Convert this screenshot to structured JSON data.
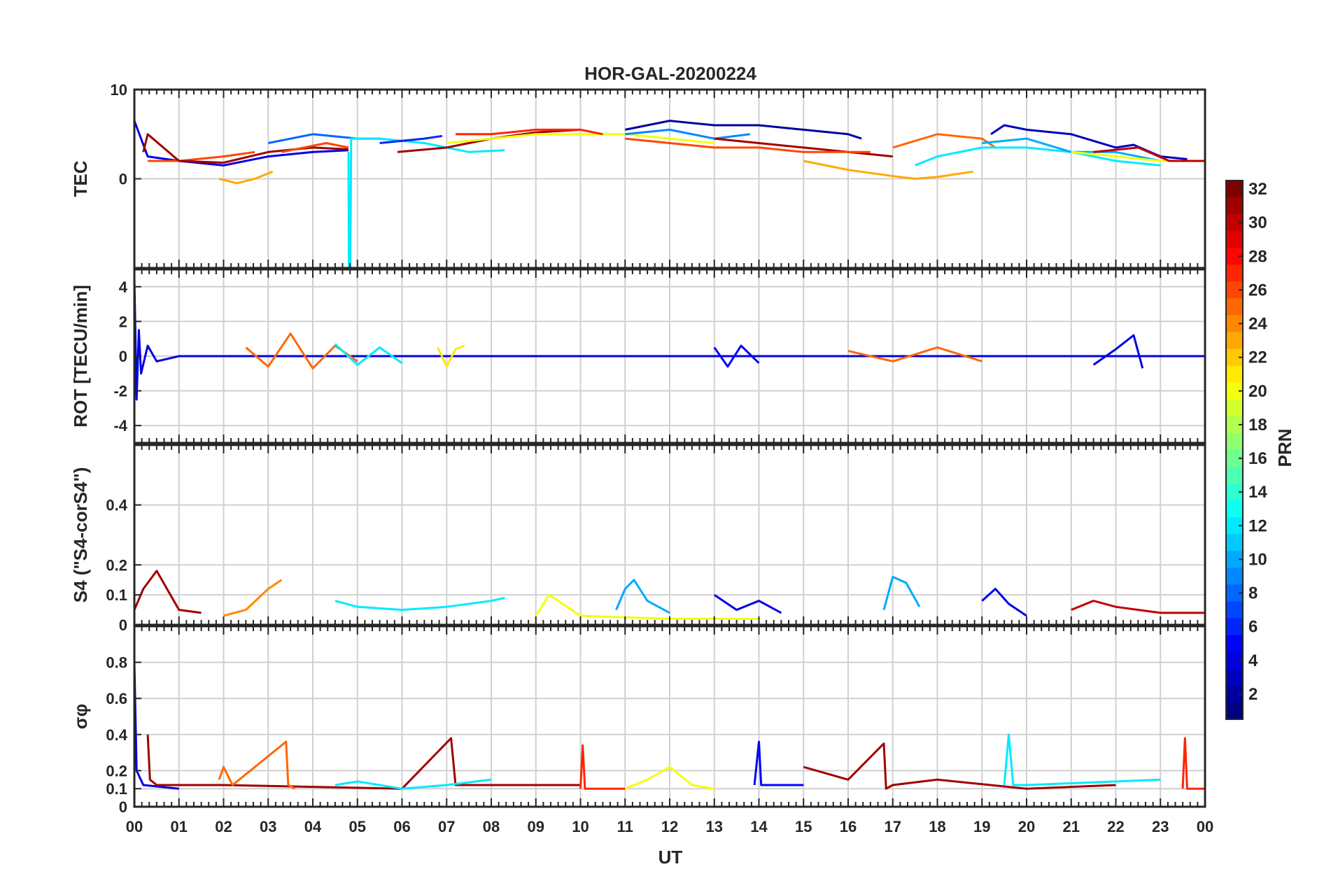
{
  "title": "HOR-GAL-20200224",
  "colors": {
    "axis": "#262626",
    "grid": "#d0d0d0",
    "background": "#ffffff"
  },
  "colorbar": {
    "label": "PRN",
    "min": 1,
    "max": 32,
    "ticks": [
      2,
      4,
      6,
      8,
      10,
      12,
      14,
      16,
      18,
      20,
      22,
      24,
      26,
      28,
      30,
      32
    ],
    "colormap": "jet"
  },
  "chart_data": [
    {
      "type": "line",
      "panel": "TEC",
      "ylabel": "TEC",
      "xlim": [
        0,
        24
      ],
      "ylim": [
        -10,
        10
      ],
      "yticks": [
        10,
        0
      ],
      "grid": true,
      "series": [
        {
          "prn": 4,
          "x": [
            0,
            0.3,
            1,
            2,
            3,
            4,
            4.8
          ],
          "y": [
            6.5,
            2.5,
            2,
            1.5,
            2.5,
            3,
            3.2
          ]
        },
        {
          "prn": 26,
          "x": [
            0.3,
            1,
            2,
            2.7
          ],
          "y": [
            2,
            2,
            2.5,
            3
          ]
        },
        {
          "prn": 31,
          "x": [
            0.2,
            0.3,
            1,
            2,
            3,
            4,
            4.8
          ],
          "y": [
            3,
            5,
            2,
            1.8,
            3,
            3.5,
            3.3
          ]
        },
        {
          "prn": 23,
          "x": [
            1.9,
            2.3,
            2.7,
            3.1
          ],
          "y": [
            0,
            -0.5,
            0,
            0.8
          ]
        },
        {
          "prn": 8,
          "x": [
            3,
            4,
            5,
            5.5
          ],
          "y": [
            4,
            5,
            4.5,
            4.5
          ]
        },
        {
          "prn": 12,
          "x": [
            4.8,
            4.81,
            4.84,
            4.86,
            5.5,
            6.5,
            7.5,
            8.3
          ],
          "y": [
            3,
            -10,
            -10,
            4.5,
            4.5,
            4,
            3,
            3.2
          ]
        },
        {
          "prn": 26,
          "x": [
            3.3,
            4.3,
            4.8
          ],
          "y": [
            3,
            4,
            3.5
          ]
        },
        {
          "prn": 6,
          "x": [
            5.5,
            6.5,
            6.9
          ],
          "y": [
            4,
            4.5,
            4.8
          ]
        },
        {
          "prn": 31,
          "x": [
            5.9,
            7,
            8,
            9,
            10
          ],
          "y": [
            3,
            3.5,
            4.5,
            5.2,
            5.5
          ]
        },
        {
          "prn": 20,
          "x": [
            7,
            8,
            9,
            10,
            11,
            12,
            13
          ],
          "y": [
            4,
            4.5,
            5,
            5,
            5,
            4.5,
            4
          ]
        },
        {
          "prn": 27,
          "x": [
            7.2,
            8,
            9,
            10,
            10.5
          ],
          "y": [
            5,
            5,
            5.5,
            5.5,
            5
          ]
        },
        {
          "prn": 2,
          "x": [
            11,
            12,
            13,
            14,
            15,
            16,
            16.3
          ],
          "y": [
            5.5,
            6.5,
            6,
            6,
            5.5,
            5,
            4.5
          ]
        },
        {
          "prn": 9,
          "x": [
            11,
            12,
            13,
            13.8
          ],
          "y": [
            5,
            5.5,
            4.5,
            5
          ]
        },
        {
          "prn": 31,
          "x": [
            13,
            14,
            15,
            16,
            17
          ],
          "y": [
            4.5,
            4,
            3.5,
            3,
            2.5
          ]
        },
        {
          "prn": 26,
          "x": [
            11,
            12,
            13,
            14,
            15,
            16.5
          ],
          "y": [
            4.5,
            4,
            3.5,
            3.5,
            3,
            3
          ]
        },
        {
          "prn": 23,
          "x": [
            15,
            16,
            17,
            17.5,
            18,
            18.8
          ],
          "y": [
            2,
            1,
            0.3,
            0,
            0.2,
            0.8
          ]
        },
        {
          "prn": 25,
          "x": [
            17,
            18,
            19,
            19.3
          ],
          "y": [
            3.5,
            5,
            4.5,
            3.5
          ]
        },
        {
          "prn": 12,
          "x": [
            17.5,
            18,
            19,
            20,
            21,
            22,
            23
          ],
          "y": [
            1.5,
            2.5,
            3.5,
            3.5,
            3,
            2,
            1.5
          ]
        },
        {
          "prn": 3,
          "x": [
            19.2,
            19.5,
            20,
            21,
            22,
            22.4,
            23,
            23.6
          ],
          "y": [
            5,
            6,
            5.5,
            5,
            3.5,
            3.8,
            2.5,
            2.2
          ]
        },
        {
          "prn": 10,
          "x": [
            19,
            20,
            21,
            22,
            23
          ],
          "y": [
            4,
            4.5,
            3,
            3,
            2
          ]
        },
        {
          "prn": 20,
          "x": [
            21,
            22,
            23,
            23.5
          ],
          "y": [
            3,
            2.5,
            2,
            2
          ]
        },
        {
          "prn": 30,
          "x": [
            21.5,
            22.5,
            23.2,
            24
          ],
          "y": [
            3,
            3.5,
            2,
            2
          ]
        }
      ]
    },
    {
      "type": "line",
      "panel": "ROT",
      "ylabel": "ROT [TECU/min]",
      "xlim": [
        0,
        24
      ],
      "ylim": [
        -5,
        5
      ],
      "yticks": [
        4,
        2,
        0,
        -2,
        -4
      ],
      "grid": true,
      "series": [
        {
          "prn": 4,
          "x": [
            0,
            0.05,
            0.1,
            0.15,
            0.3,
            0.5,
            1,
            24
          ],
          "y": [
            4.5,
            -2.5,
            1.5,
            -1,
            0.6,
            -0.3,
            0,
            0
          ]
        },
        {
          "prn": 25,
          "x": [
            2.5,
            3,
            3.5,
            4,
            4.5,
            5
          ],
          "y": [
            0.5,
            -0.6,
            1.3,
            -0.7,
            0.6,
            -0.3
          ]
        },
        {
          "prn": 12,
          "x": [
            4.5,
            5,
            5.5,
            6
          ],
          "y": [
            0.7,
            -0.5,
            0.5,
            -0.4
          ]
        },
        {
          "prn": 21,
          "x": [
            6.8,
            7,
            7.2,
            7.4
          ],
          "y": [
            0.5,
            -0.6,
            0.4,
            0.6
          ]
        },
        {
          "prn": 5,
          "x": [
            13,
            13.3,
            13.6,
            14
          ],
          "y": [
            0.5,
            -0.6,
            0.6,
            -0.4
          ]
        },
        {
          "prn": 25,
          "x": [
            16,
            17,
            18,
            19
          ],
          "y": [
            0.3,
            -0.3,
            0.5,
            -0.3
          ]
        },
        {
          "prn": 4,
          "x": [
            21.5,
            22,
            22.4,
            22.6
          ],
          "y": [
            -0.5,
            0.4,
            1.2,
            -0.7
          ]
        }
      ]
    },
    {
      "type": "line",
      "panel": "S4",
      "ylabel": "S4 (\"S4-corS4\")",
      "xlim": [
        0,
        24
      ],
      "ylim": [
        0,
        0.6
      ],
      "yticks": [
        0.4,
        0.2,
        0.1,
        0
      ],
      "grid": true,
      "series": [
        {
          "prn": 31,
          "x": [
            0,
            0.2,
            0.5,
            1,
            1.5
          ],
          "y": [
            0.05,
            0.12,
            0.18,
            0.05,
            0.04
          ]
        },
        {
          "prn": 24,
          "x": [
            2,
            2.5,
            3,
            3.3
          ],
          "y": [
            0.03,
            0.05,
            0.12,
            0.15
          ]
        },
        {
          "prn": 12,
          "x": [
            4.5,
            5,
            6,
            7,
            8,
            8.3
          ],
          "y": [
            0.08,
            0.06,
            0.05,
            0.06,
            0.08,
            0.09
          ]
        },
        {
          "prn": 10,
          "x": [
            10.8,
            11,
            11.2,
            11.5,
            12
          ],
          "y": [
            0.05,
            0.12,
            0.15,
            0.08,
            0.04
          ]
        },
        {
          "prn": 4,
          "x": [
            13,
            13.5,
            14,
            14.5
          ],
          "y": [
            0.1,
            0.05,
            0.08,
            0.04
          ]
        },
        {
          "prn": 10,
          "x": [
            16.8,
            17,
            17.3,
            17.6
          ],
          "y": [
            0.05,
            0.16,
            0.14,
            0.06
          ]
        },
        {
          "prn": 4,
          "x": [
            19,
            19.3,
            19.6,
            20
          ],
          "y": [
            0.08,
            0.12,
            0.07,
            0.03
          ]
        },
        {
          "prn": 30,
          "x": [
            21,
            21.5,
            22,
            23,
            24
          ],
          "y": [
            0.05,
            0.08,
            0.06,
            0.04,
            0.04
          ]
        },
        {
          "prn": 20,
          "x": [
            9,
            9.3,
            10,
            12,
            14
          ],
          "y": [
            0.03,
            0.1,
            0.03,
            0.02,
            0.02
          ]
        }
      ]
    },
    {
      "type": "line",
      "panel": "sigma_phi",
      "ylabel": "σφ",
      "xlim": [
        0,
        24
      ],
      "ylim": [
        0,
        1
      ],
      "yticks": [
        0.8,
        0.6,
        0.4,
        0.2,
        0.1,
        0
      ],
      "xticks": [
        "00",
        "01",
        "02",
        "03",
        "04",
        "05",
        "06",
        "07",
        "08",
        "09",
        "10",
        "11",
        "12",
        "13",
        "14",
        "15",
        "16",
        "17",
        "18",
        "19",
        "20",
        "21",
        "22",
        "23",
        "00"
      ],
      "xlabel": "UT",
      "grid": true,
      "series": [
        {
          "prn": 4,
          "x": [
            0,
            0.05,
            0.2,
            1
          ],
          "y": [
            0.8,
            0.2,
            0.12,
            0.1
          ]
        },
        {
          "prn": 31,
          "x": [
            0.3,
            0.35,
            0.5,
            2,
            6,
            7.1,
            7.2,
            10
          ],
          "y": [
            0.4,
            0.15,
            0.12,
            0.12,
            0.1,
            0.38,
            0.12,
            0.12
          ]
        },
        {
          "prn": 25,
          "x": [
            1.9,
            2,
            2.2,
            3.4,
            3.45,
            3.6
          ],
          "y": [
            0.15,
            0.22,
            0.12,
            0.36,
            0.12,
            0.1
          ]
        },
        {
          "prn": 12,
          "x": [
            4.5,
            5,
            6,
            7,
            8
          ],
          "y": [
            0.12,
            0.14,
            0.1,
            0.12,
            0.15
          ]
        },
        {
          "prn": 27,
          "x": [
            10,
            10.05,
            10.1,
            11
          ],
          "y": [
            0.1,
            0.34,
            0.1,
            0.1
          ]
        },
        {
          "prn": 20,
          "x": [
            11,
            11.5,
            12,
            12.5,
            13
          ],
          "y": [
            0.1,
            0.15,
            0.22,
            0.12,
            0.1
          ]
        },
        {
          "prn": 5,
          "x": [
            13.9,
            14,
            14.05,
            15
          ],
          "y": [
            0.12,
            0.36,
            0.12,
            0.12
          ]
        },
        {
          "prn": 31,
          "x": [
            15,
            16,
            16.8,
            16.85,
            17,
            18,
            20,
            22
          ],
          "y": [
            0.22,
            0.15,
            0.35,
            0.1,
            0.12,
            0.15,
            0.1,
            0.12
          ]
        },
        {
          "prn": 12,
          "x": [
            19.5,
            19.6,
            19.7,
            20,
            22,
            23
          ],
          "y": [
            0.12,
            0.4,
            0.12,
            0.12,
            0.14,
            0.15
          ]
        },
        {
          "prn": 27,
          "x": [
            23.5,
            23.55,
            23.6,
            24
          ],
          "y": [
            0.1,
            0.38,
            0.1,
            0.1
          ]
        }
      ]
    }
  ]
}
